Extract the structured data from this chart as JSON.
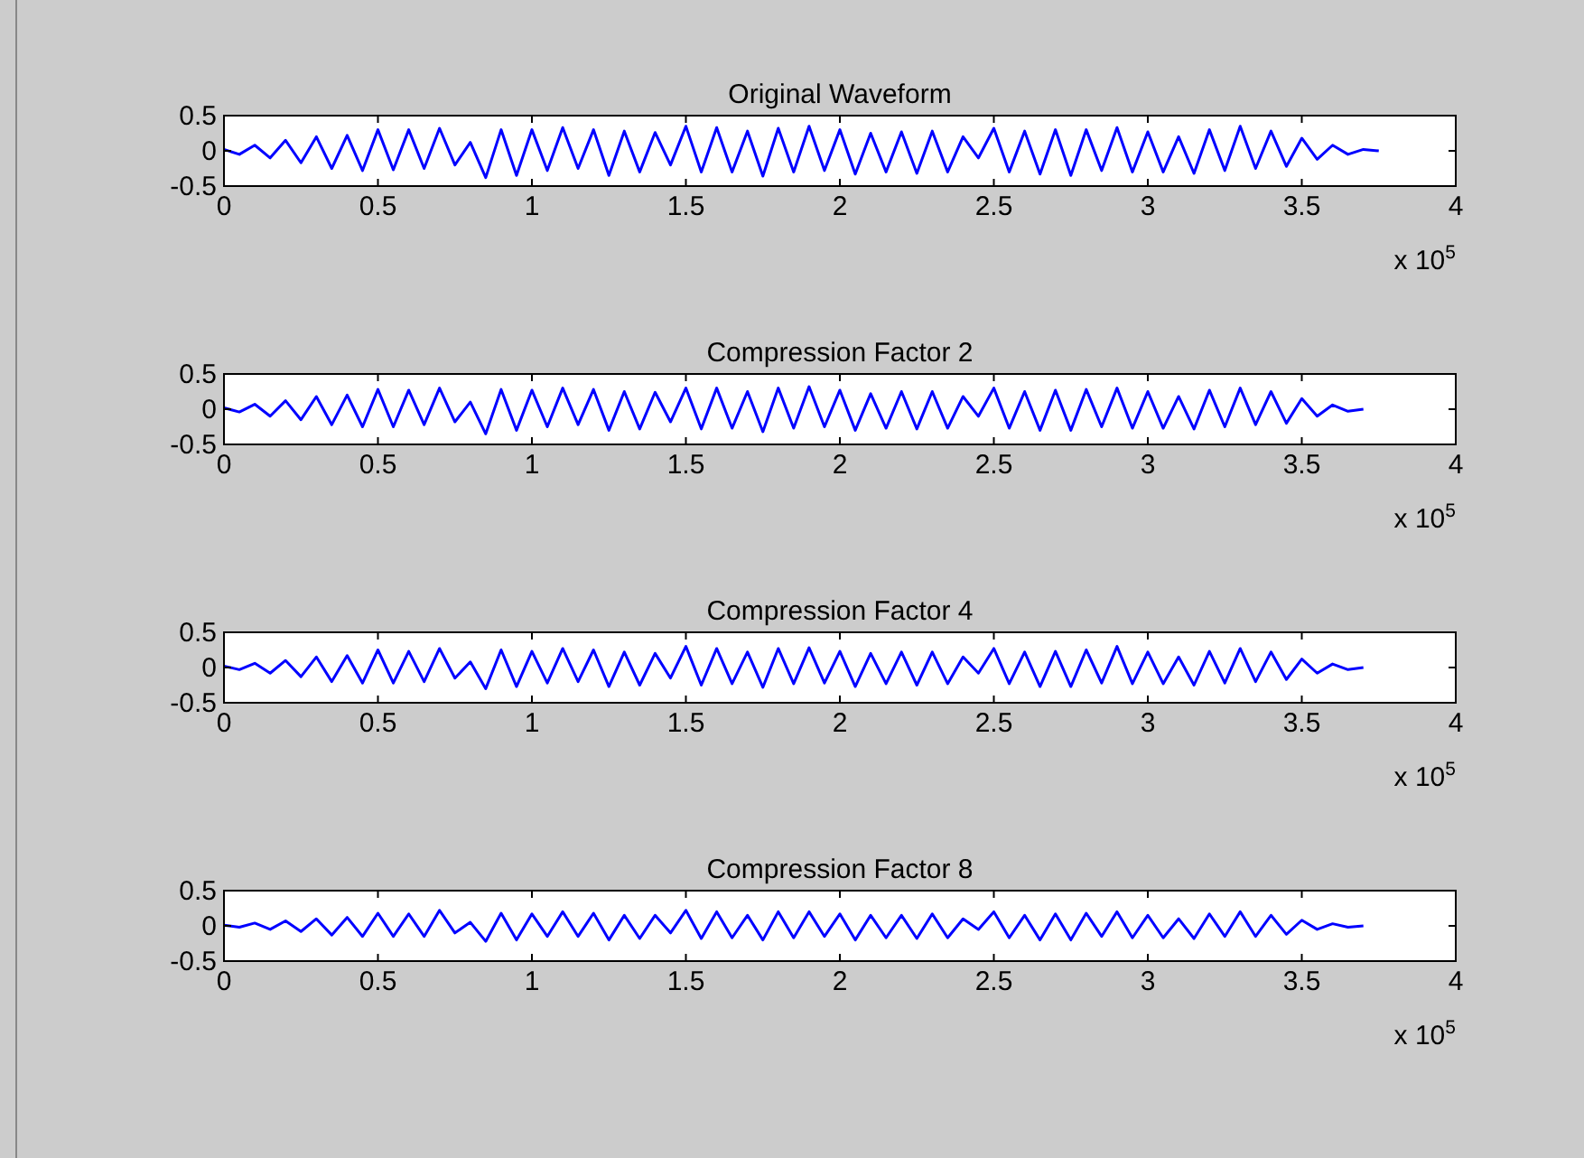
{
  "chart_data": [
    {
      "type": "line",
      "title": "Original Waveform",
      "x": [
        0,
        0.05,
        0.1,
        0.15,
        0.2,
        0.25,
        0.3,
        0.35,
        0.4,
        0.45,
        0.5,
        0.55,
        0.6,
        0.65,
        0.7,
        0.75,
        0.8,
        0.85,
        0.9,
        0.95,
        1,
        1.05,
        1.1,
        1.15,
        1.2,
        1.25,
        1.3,
        1.35,
        1.4,
        1.45,
        1.5,
        1.55,
        1.6,
        1.65,
        1.7,
        1.75,
        1.8,
        1.85,
        1.9,
        1.95,
        2,
        2.05,
        2.1,
        2.15,
        2.2,
        2.25,
        2.3,
        2.35,
        2.4,
        2.45,
        2.5,
        2.55,
        2.6,
        2.65,
        2.7,
        2.75,
        2.8,
        2.85,
        2.9,
        2.95,
        3,
        3.05,
        3.1,
        3.15,
        3.2,
        3.25,
        3.3,
        3.35,
        3.4,
        3.45,
        3.5,
        3.55,
        3.6,
        3.65,
        3.7,
        3.75
      ],
      "series": [
        {
          "color": "#0000ff",
          "values": [
            0.02,
            -0.05,
            0.08,
            -0.1,
            0.15,
            -0.17,
            0.2,
            -0.25,
            0.22,
            -0.28,
            0.3,
            -0.27,
            0.3,
            -0.25,
            0.32,
            -0.2,
            0.12,
            -0.38,
            0.3,
            -0.35,
            0.3,
            -0.28,
            0.33,
            -0.25,
            0.3,
            -0.35,
            0.28,
            -0.3,
            0.26,
            -0.2,
            0.35,
            -0.3,
            0.33,
            -0.3,
            0.28,
            -0.36,
            0.32,
            -0.3,
            0.35,
            -0.28,
            0.3,
            -0.33,
            0.25,
            -0.3,
            0.27,
            -0.32,
            0.28,
            -0.3,
            0.2,
            -0.1,
            0.32,
            -0.3,
            0.28,
            -0.33,
            0.3,
            -0.35,
            0.3,
            -0.28,
            0.33,
            -0.3,
            0.27,
            -0.3,
            0.2,
            -0.32,
            0.3,
            -0.28,
            0.35,
            -0.25,
            0.28,
            -0.22,
            0.18,
            -0.12,
            0.08,
            -0.05,
            0.02,
            0
          ]
        }
      ],
      "xlim": [
        0,
        4
      ],
      "xticks": [
        0,
        0.5,
        1,
        1.5,
        2,
        2.5,
        3,
        3.5,
        4
      ],
      "ylim": [
        -0.5,
        0.5
      ],
      "yticks": [
        -0.5,
        0,
        0.5
      ],
      "annotations": [
        "x 10$^{5}$"
      ]
    },
    {
      "type": "line",
      "title": "Compression Factor 2",
      "x": [
        0,
        0.05,
        0.1,
        0.15,
        0.2,
        0.25,
        0.3,
        0.35,
        0.4,
        0.45,
        0.5,
        0.55,
        0.6,
        0.65,
        0.7,
        0.75,
        0.8,
        0.85,
        0.9,
        0.95,
        1,
        1.05,
        1.1,
        1.15,
        1.2,
        1.25,
        1.3,
        1.35,
        1.4,
        1.45,
        1.5,
        1.55,
        1.6,
        1.65,
        1.7,
        1.75,
        1.8,
        1.85,
        1.9,
        1.95,
        2,
        2.05,
        2.1,
        2.15,
        2.2,
        2.25,
        2.3,
        2.35,
        2.4,
        2.45,
        2.5,
        2.55,
        2.6,
        2.65,
        2.7,
        2.75,
        2.8,
        2.85,
        2.9,
        2.95,
        3,
        3.05,
        3.1,
        3.15,
        3.2,
        3.25,
        3.3,
        3.35,
        3.4,
        3.45,
        3.5,
        3.55,
        3.6,
        3.65,
        3.7
      ],
      "series": [
        {
          "color": "#0000ff",
          "values": [
            0.02,
            -0.04,
            0.07,
            -0.1,
            0.12,
            -0.15,
            0.18,
            -0.22,
            0.2,
            -0.25,
            0.28,
            -0.25,
            0.27,
            -0.22,
            0.3,
            -0.18,
            0.1,
            -0.35,
            0.28,
            -0.3,
            0.27,
            -0.25,
            0.3,
            -0.22,
            0.28,
            -0.3,
            0.25,
            -0.28,
            0.24,
            -0.18,
            0.3,
            -0.28,
            0.3,
            -0.27,
            0.25,
            -0.32,
            0.3,
            -0.27,
            0.32,
            -0.25,
            0.27,
            -0.3,
            0.22,
            -0.27,
            0.25,
            -0.28,
            0.25,
            -0.27,
            0.18,
            -0.1,
            0.3,
            -0.27,
            0.25,
            -0.3,
            0.27,
            -0.3,
            0.28,
            -0.25,
            0.3,
            -0.27,
            0.25,
            -0.27,
            0.18,
            -0.28,
            0.27,
            -0.25,
            0.3,
            -0.22,
            0.25,
            -0.2,
            0.15,
            -0.1,
            0.06,
            -0.03,
            0
          ]
        }
      ],
      "xlim": [
        0,
        4
      ],
      "xticks": [
        0,
        0.5,
        1,
        1.5,
        2,
        2.5,
        3,
        3.5,
        4
      ],
      "ylim": [
        -0.5,
        0.5
      ],
      "yticks": [
        -0.5,
        0,
        0.5
      ],
      "annotations": [
        "x 10$^{5}$"
      ]
    },
    {
      "type": "line",
      "title": "Compression Factor 4",
      "x": [
        0,
        0.05,
        0.1,
        0.15,
        0.2,
        0.25,
        0.3,
        0.35,
        0.4,
        0.45,
        0.5,
        0.55,
        0.6,
        0.65,
        0.7,
        0.75,
        0.8,
        0.85,
        0.9,
        0.95,
        1,
        1.05,
        1.1,
        1.15,
        1.2,
        1.25,
        1.3,
        1.35,
        1.4,
        1.45,
        1.5,
        1.55,
        1.6,
        1.65,
        1.7,
        1.75,
        1.8,
        1.85,
        1.9,
        1.95,
        2,
        2.05,
        2.1,
        2.15,
        2.2,
        2.25,
        2.3,
        2.35,
        2.4,
        2.45,
        2.5,
        2.55,
        2.6,
        2.65,
        2.7,
        2.75,
        2.8,
        2.85,
        2.9,
        2.95,
        3,
        3.05,
        3.1,
        3.15,
        3.2,
        3.25,
        3.3,
        3.35,
        3.4,
        3.45,
        3.5,
        3.55,
        3.6,
        3.65,
        3.7
      ],
      "series": [
        {
          "color": "#0000ff",
          "values": [
            0.02,
            -0.03,
            0.06,
            -0.08,
            0.1,
            -0.13,
            0.15,
            -0.2,
            0.17,
            -0.22,
            0.25,
            -0.22,
            0.23,
            -0.2,
            0.27,
            -0.15,
            0.08,
            -0.3,
            0.25,
            -0.27,
            0.23,
            -0.22,
            0.27,
            -0.2,
            0.25,
            -0.27,
            0.22,
            -0.25,
            0.2,
            -0.15,
            0.3,
            -0.25,
            0.27,
            -0.23,
            0.22,
            -0.28,
            0.27,
            -0.23,
            0.28,
            -0.22,
            0.23,
            -0.27,
            0.2,
            -0.23,
            0.22,
            -0.25,
            0.22,
            -0.23,
            0.15,
            -0.08,
            0.27,
            -0.23,
            0.22,
            -0.27,
            0.23,
            -0.27,
            0.25,
            -0.22,
            0.3,
            -0.23,
            0.22,
            -0.23,
            0.15,
            -0.25,
            0.23,
            -0.22,
            0.27,
            -0.2,
            0.22,
            -0.17,
            0.12,
            -0.08,
            0.05,
            -0.03,
            0
          ]
        }
      ],
      "xlim": [
        0,
        4
      ],
      "xticks": [
        0,
        0.5,
        1,
        1.5,
        2,
        2.5,
        3,
        3.5,
        4
      ],
      "ylim": [
        -0.5,
        0.5
      ],
      "yticks": [
        -0.5,
        0,
        0.5
      ],
      "annotations": [
        "x 10$^{5}$"
      ]
    },
    {
      "type": "line",
      "title": "Compression Factor 8",
      "x": [
        0,
        0.05,
        0.1,
        0.15,
        0.2,
        0.25,
        0.3,
        0.35,
        0.4,
        0.45,
        0.5,
        0.55,
        0.6,
        0.65,
        0.7,
        0.75,
        0.8,
        0.85,
        0.9,
        0.95,
        1,
        1.05,
        1.1,
        1.15,
        1.2,
        1.25,
        1.3,
        1.35,
        1.4,
        1.45,
        1.5,
        1.55,
        1.6,
        1.65,
        1.7,
        1.75,
        1.8,
        1.85,
        1.9,
        1.95,
        2,
        2.05,
        2.1,
        2.15,
        2.2,
        2.25,
        2.3,
        2.35,
        2.4,
        2.45,
        2.5,
        2.55,
        2.6,
        2.65,
        2.7,
        2.75,
        2.8,
        2.85,
        2.9,
        2.95,
        3,
        3.05,
        3.1,
        3.15,
        3.2,
        3.25,
        3.3,
        3.35,
        3.4,
        3.45,
        3.5,
        3.55,
        3.6,
        3.65,
        3.7
      ],
      "series": [
        {
          "color": "#0000ff",
          "values": [
            0.01,
            -0.02,
            0.04,
            -0.05,
            0.07,
            -0.08,
            0.1,
            -0.13,
            0.12,
            -0.15,
            0.18,
            -0.15,
            0.17,
            -0.15,
            0.22,
            -0.1,
            0.05,
            -0.22,
            0.18,
            -0.2,
            0.17,
            -0.15,
            0.2,
            -0.15,
            0.18,
            -0.2,
            0.15,
            -0.18,
            0.15,
            -0.1,
            0.22,
            -0.18,
            0.2,
            -0.17,
            0.15,
            -0.2,
            0.2,
            -0.17,
            0.2,
            -0.15,
            0.17,
            -0.2,
            0.15,
            -0.17,
            0.15,
            -0.18,
            0.17,
            -0.17,
            0.1,
            -0.05,
            0.2,
            -0.17,
            0.15,
            -0.2,
            0.17,
            -0.2,
            0.18,
            -0.15,
            0.2,
            -0.17,
            0.15,
            -0.17,
            0.1,
            -0.18,
            0.17,
            -0.15,
            0.2,
            -0.15,
            0.15,
            -0.12,
            0.08,
            -0.05,
            0.03,
            -0.02,
            0
          ]
        }
      ],
      "xlim": [
        0,
        4
      ],
      "xticks": [
        0,
        0.5,
        1,
        1.5,
        2,
        2.5,
        3,
        3.5,
        4
      ],
      "ylim": [
        -0.5,
        0.5
      ],
      "yticks": [
        -0.5,
        0,
        0.5
      ],
      "annotations": [
        "x 10$^{5}$"
      ]
    }
  ]
}
